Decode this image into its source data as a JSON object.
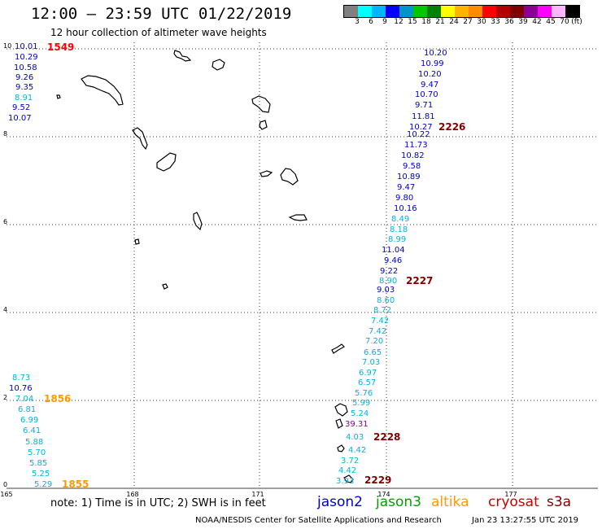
{
  "header": {
    "title": "12:00 — 23:59 UTC 01/22/2019",
    "subtitle": "12 hour collection of altimeter wave heights"
  },
  "colorbar": {
    "colors": [
      "#808080",
      "#00ffff",
      "#00b4ff",
      "#0000ff",
      "#0096c8",
      "#00c800",
      "#008200",
      "#ffff00",
      "#ffb400",
      "#ff8c00",
      "#ff0000",
      "#b40000",
      "#800000",
      "#8c0096",
      "#ff00ff",
      "#ffb4ff",
      "#000000"
    ],
    "labels": [
      "3",
      "6",
      "9",
      "12",
      "15",
      "18",
      "21",
      "24",
      "27",
      "30",
      "33",
      "36",
      "39",
      "42",
      "45",
      "70",
      "(ft)"
    ]
  },
  "axes": {
    "x_ticks": [
      "165",
      "168",
      "171",
      "174",
      "177"
    ],
    "y_ticks": [
      "0",
      "2",
      "4",
      "6",
      "8",
      "10"
    ]
  },
  "colors": {
    "jason2": "#0000cc",
    "jason3": "#00a000",
    "altika": "#ff9900",
    "cryosat": "#cc0000",
    "s3a": "#800000",
    "cyan": "#00b4dc",
    "magenta": "#8c0096"
  },
  "track_left_top": [
    {
      "text": "10.01",
      "color": "#0000cc"
    },
    {
      "text": "10.29",
      "color": "#0000cc"
    },
    {
      "text": "10.58",
      "color": "#0000cc"
    },
    {
      "text": "9.26",
      "color": "#0000cc"
    },
    {
      "text": "9.35",
      "color": "#0000cc"
    },
    {
      "text": "8.91",
      "color": "#00b4dc"
    },
    {
      "text": "9.52",
      "color": "#0000cc"
    },
    {
      "text": "10.07",
      "color": "#0000cc"
    }
  ],
  "track_left_bottom": [
    {
      "text": "8.73",
      "color": "#00b4dc"
    },
    {
      "text": "10.76",
      "color": "#0000cc"
    },
    {
      "text": "7.04",
      "color": "#00b4dc"
    },
    {
      "text": "6.81",
      "color": "#00b4dc"
    },
    {
      "text": "6.99",
      "color": "#00b4dc"
    },
    {
      "text": "6.41",
      "color": "#00b4dc"
    },
    {
      "text": "5.88",
      "color": "#00b4dc"
    },
    {
      "text": "5.70",
      "color": "#00b4dc"
    },
    {
      "text": "5.85",
      "color": "#00b4dc"
    },
    {
      "text": "5.25",
      "color": "#00b4dc"
    },
    {
      "text": "5.29",
      "color": "#00b4dc"
    }
  ],
  "track_right": [
    {
      "text": "10.20",
      "color": "#0000cc"
    },
    {
      "text": "10.99",
      "color": "#0000cc"
    },
    {
      "text": "10.20",
      "color": "#0000cc"
    },
    {
      "text": "9.47",
      "color": "#0000cc"
    },
    {
      "text": "10.70",
      "color": "#0000cc"
    },
    {
      "text": "9.71",
      "color": "#0000cc"
    },
    {
      "text": "11.81",
      "color": "#0000cc"
    },
    {
      "text": "10.27",
      "color": "#0000cc"
    },
    {
      "text": "10.22",
      "color": "#0000cc"
    },
    {
      "text": "11.73",
      "color": "#0000cc"
    },
    {
      "text": "10.82",
      "color": "#0000cc"
    },
    {
      "text": "9.58",
      "color": "#0000cc"
    },
    {
      "text": "10.89",
      "color": "#0000cc"
    },
    {
      "text": "9.47",
      "color": "#0000cc"
    },
    {
      "text": "9.80",
      "color": "#0000cc"
    },
    {
      "text": "10.16",
      "color": "#0000cc"
    },
    {
      "text": "8.49",
      "color": "#00b4dc"
    },
    {
      "text": "8.18",
      "color": "#00b4dc"
    },
    {
      "text": "8.99",
      "color": "#00b4dc"
    },
    {
      "text": "11.04",
      "color": "#0000cc"
    },
    {
      "text": "9.46",
      "color": "#0000cc"
    },
    {
      "text": "9.22",
      "color": "#0000cc"
    },
    {
      "text": "8.90",
      "color": "#00b4dc"
    },
    {
      "text": "9.03",
      "color": "#0000cc"
    },
    {
      "text": "8.60",
      "color": "#00b4dc"
    },
    {
      "text": "8.72",
      "color": "#00b4dc"
    },
    {
      "text": "7.42",
      "color": "#00b4dc"
    },
    {
      "text": "7.42",
      "color": "#00b4dc"
    },
    {
      "text": "7.20",
      "color": "#00b4dc"
    },
    {
      "text": "6.65",
      "color": "#00b4dc"
    },
    {
      "text": "7.03",
      "color": "#00b4dc"
    },
    {
      "text": "6.97",
      "color": "#00b4dc"
    },
    {
      "text": "6.57",
      "color": "#00b4dc"
    },
    {
      "text": "5.76",
      "color": "#00b4dc"
    },
    {
      "text": "5.99",
      "color": "#00b4dc"
    },
    {
      "text": "5.24",
      "color": "#00b4dc"
    },
    {
      "text": "39.31",
      "color": "#8c0096"
    },
    {
      "text": "4.03",
      "color": "#00b4dc"
    },
    {
      "text": "4.42",
      "color": "#00b4dc"
    },
    {
      "text": "3.72",
      "color": "#00b4dc"
    },
    {
      "text": "4.42",
      "color": "#00b4dc"
    },
    {
      "text": "3.93",
      "color": "#00b4dc"
    }
  ],
  "orbit_labels": [
    {
      "text": "1549",
      "color": "#ff0000"
    },
    {
      "text": "2226",
      "color": "#800000"
    },
    {
      "text": "2227",
      "color": "#800000"
    },
    {
      "text": "2228",
      "color": "#800000"
    },
    {
      "text": "2229",
      "color": "#800000"
    },
    {
      "text": "1856",
      "color": "#ff9900"
    },
    {
      "text": "1855",
      "color": "#ff9900"
    }
  ],
  "footer": {
    "note": "note:  1) Time is in UTC;  2) SWH is in feet",
    "sat_jason2": "jason2",
    "sat_jason3": "jason3",
    "sat_altika": "altika",
    "sat_cryosat": "cryosat",
    "sat_s3a": "s3a",
    "credit": "NOAA/NESDIS Center for Satellite Applications and Research",
    "timestamp": "Jan 23 13:27:55 UTC 2019"
  }
}
